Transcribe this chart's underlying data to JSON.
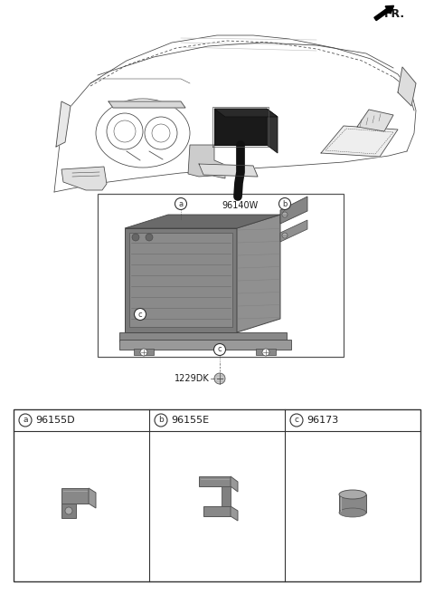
{
  "bg_color": "#ffffff",
  "fr_label": "FR.",
  "label_96140W": "96140W",
  "label_1229DK": "1229DK",
  "parts": [
    {
      "key": "a",
      "part_num": "96155D"
    },
    {
      "key": "b",
      "part_num": "96155E"
    },
    {
      "key": "c",
      "part_num": "96173"
    }
  ],
  "text_color": "#1a1a1a",
  "line_color": "#444444",
  "medium_gray": "#999999",
  "dark_gray": "#555555",
  "unit_dark": "#6a6a6a",
  "unit_side": "#888888",
  "unit_bottom": "#7a7a7a",
  "bracket_color": "#808080",
  "table_border": "#333333",
  "fig_w": 4.8,
  "fig_h": 6.57,
  "dpi": 100
}
